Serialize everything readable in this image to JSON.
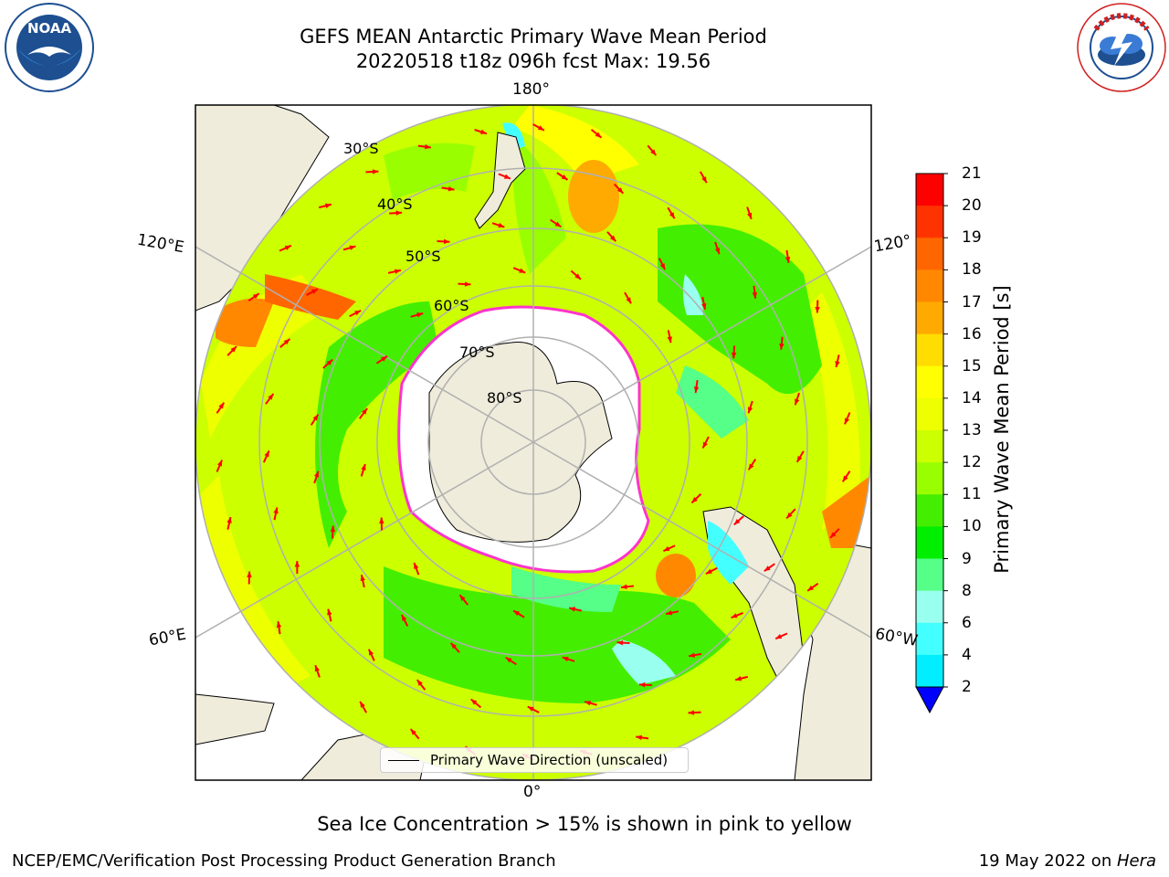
{
  "header": {
    "title_line1": "GEFS MEAN Antarctic Primary Wave Mean Period",
    "title_line2": "20220518 t18z 096h fcst   Max: 19.56"
  },
  "logos": {
    "left": "noaa-logo",
    "right": "nws-logo"
  },
  "map": {
    "lon_labels": {
      "top": "180°",
      "bottom": "0°",
      "left_upper": "120°E",
      "left_lower": "60°E",
      "right_upper": "120°",
      "right_lower": "60°W"
    },
    "lat_labels": [
      "30°S",
      "40°S",
      "50°S",
      "60°S",
      "70°S",
      "80°S"
    ],
    "legend_label": "Primary Wave Direction (unscaled)",
    "colors": {
      "land": "#efecdb",
      "ice": "#ffffff",
      "grid": "#b0b0b0",
      "arrow": "#ff0000",
      "ice_edge": "#ff33cc"
    }
  },
  "colorbar": {
    "label": "Primary Wave Mean Period [s]",
    "ticks": [
      "21",
      "20",
      "19",
      "18",
      "17",
      "16",
      "15",
      "14",
      "13",
      "12",
      "11",
      "10",
      "9",
      "8",
      "6",
      "4",
      "2"
    ],
    "colors_top_to_bottom": [
      "#ff0000",
      "#ff3300",
      "#ff6600",
      "#ff8800",
      "#ffaa00",
      "#ffdd00",
      "#ffff00",
      "#eeff00",
      "#ccff00",
      "#99ff00",
      "#44ee00",
      "#00ee00",
      "#55ff88",
      "#99ffee",
      "#44ffff",
      "#00eeff",
      "#0099ff",
      "#0055ff"
    ]
  },
  "notes": {
    "ice_note": "Sea Ice Concentration > 15% is shown in pink to yellow",
    "footer_left": "NCEP/EMC/Verification Post Processing Product Generation Branch",
    "footer_right_date": "19 May 2022 on ",
    "footer_right_host": "Hera"
  }
}
